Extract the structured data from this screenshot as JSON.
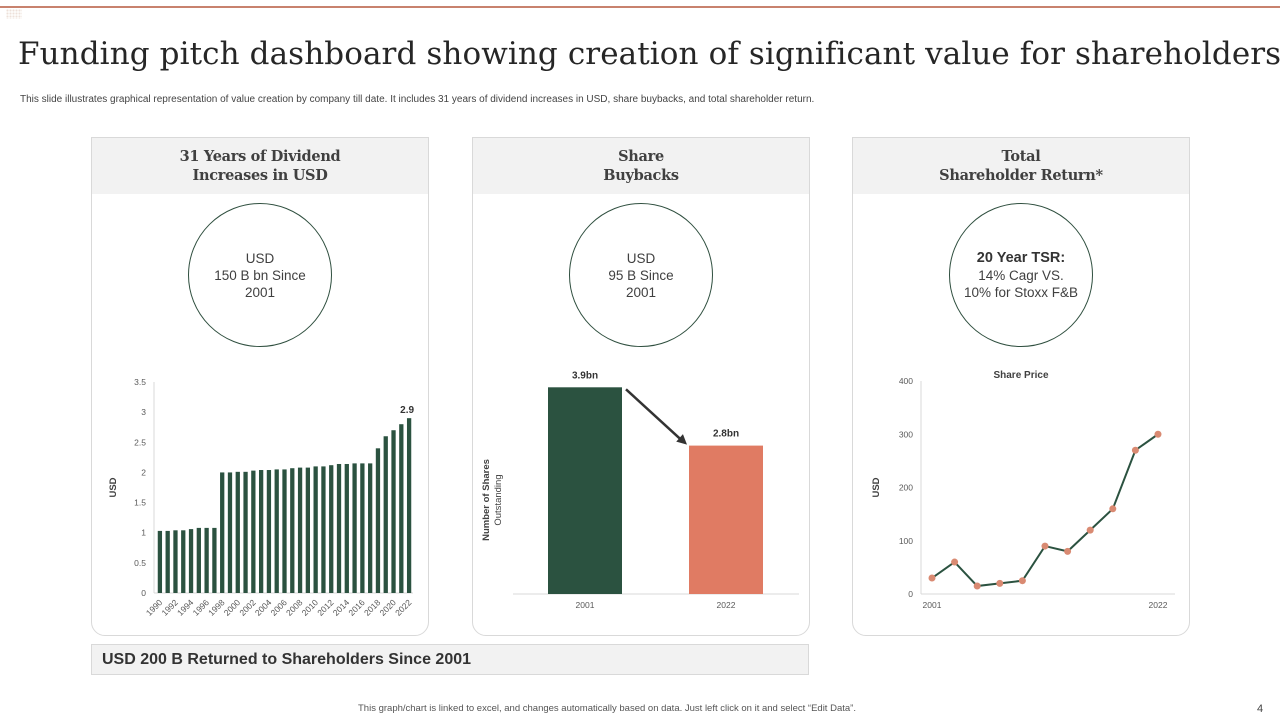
{
  "header": {
    "title": "Funding pitch dashboard showing creation of significant value for shareholders",
    "subtitle": "This slide illustrates graphical representation of value creation by company till date. It includes 31 years of dividend increases in USD, share buybacks, and total shareholder return."
  },
  "cards": [
    {
      "title_line1": "31 Years of Dividend",
      "title_line2": "Increases in USD",
      "circle_line1": "USD",
      "circle_line2": "150 B bn Since",
      "circle_line3": "2001"
    },
    {
      "title_line1": "Share",
      "title_line2": "Buybacks",
      "circle_line1": "USD",
      "circle_line2": "95 B Since",
      "circle_line3": "2001"
    },
    {
      "title_line1": "Total",
      "title_line2": "Shareholder Return*",
      "circle_line1": "20 Year TSR:",
      "circle_line2": "14% Cagr VS.",
      "circle_line3": "10% for Stoxx  F&B"
    }
  ],
  "bottom_bar": "USD  200 B Returned to Shareholders Since 2001",
  "footer": "This graph/chart is linked to excel, and changes automatically based on data. Just left click on it and select “Edit Data”.",
  "page_number": "4",
  "colors": {
    "accent_green": "#2b5240",
    "accent_coral": "#e07b63",
    "marker_coral": "#d98a72",
    "rule": "#c8826e"
  },
  "chart_data": [
    {
      "type": "bar",
      "title": "31 Years of Dividend Increases in USD",
      "xlabel": "",
      "ylabel": "USD",
      "ylim": [
        0,
        3.5
      ],
      "yticks": [
        "0",
        "0.5",
        "1",
        "1.5",
        "2",
        "2.5",
        "3",
        "3.5"
      ],
      "categories": [
        "1990",
        "1991",
        "1992",
        "1993",
        "1994",
        "1995",
        "1996",
        "1997",
        "1998",
        "1999",
        "2000",
        "2001",
        "2002",
        "2003",
        "2004",
        "2005",
        "2006",
        "2007",
        "2008",
        "2009",
        "2010",
        "2011",
        "2012",
        "2013",
        "2014",
        "2015",
        "2016",
        "2017",
        "2018",
        "2019",
        "2020",
        "2021",
        "2022"
      ],
      "tick_labels": [
        "1990",
        "1992",
        "1994",
        "1996",
        "1998",
        "2000",
        "2002",
        "2004",
        "2006",
        "2008",
        "2010",
        "2012",
        "2014",
        "2016",
        "2018",
        "2020",
        "2022"
      ],
      "values": [
        1.03,
        1.03,
        1.04,
        1.04,
        1.06,
        1.08,
        1.08,
        1.08,
        2.0,
        2.0,
        2.01,
        2.01,
        2.03,
        2.04,
        2.04,
        2.05,
        2.05,
        2.07,
        2.08,
        2.08,
        2.1,
        2.1,
        2.12,
        2.14,
        2.14,
        2.15,
        2.15,
        2.15,
        2.4,
        2.6,
        2.7,
        2.8,
        2.9
      ],
      "data_label": {
        "category": "2022",
        "text": "2.9"
      },
      "grid": false
    },
    {
      "type": "bar",
      "title": "Share Buybacks",
      "ylabel_line1": "Number of Shares",
      "ylabel_line2": "Outstanding",
      "categories": [
        "2001",
        "2022"
      ],
      "values": [
        3.9,
        2.8
      ],
      "data_labels": [
        "3.9bn",
        "2.8bn"
      ],
      "bar_colors": [
        "#2b5240",
        "#e07b63"
      ],
      "ylim": [
        0,
        4.0
      ],
      "annotation": "arrow from 2001 bar to 2022 bar",
      "grid": false
    },
    {
      "type": "line",
      "title": "Share Price",
      "ylabel": "USD",
      "ylim": [
        0,
        400
      ],
      "yticks": [
        "0",
        "100",
        "200",
        "300",
        "400"
      ],
      "x_labels": [
        "2001",
        "2022"
      ],
      "values": [
        30,
        60,
        15,
        20,
        25,
        90,
        80,
        120,
        160,
        270,
        300
      ],
      "grid": false
    }
  ]
}
